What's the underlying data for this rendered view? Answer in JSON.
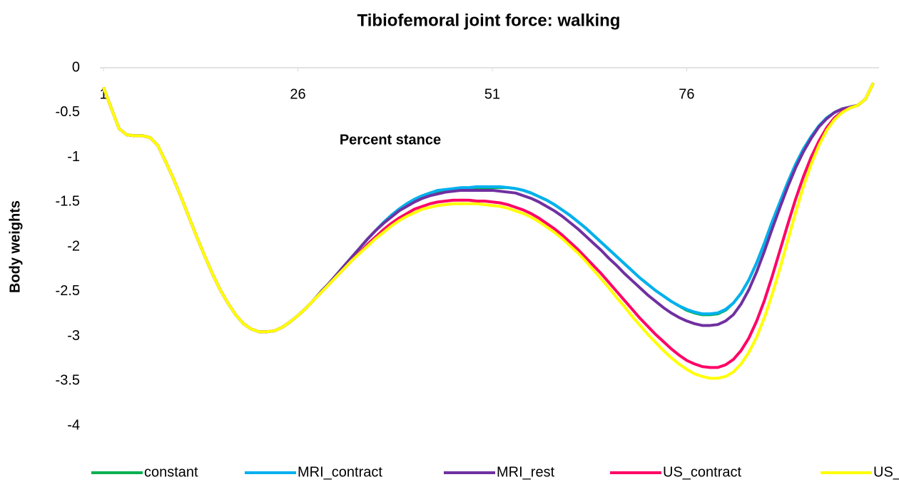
{
  "chart_data": {
    "type": "line",
    "title": "Tibiofemoral joint force: walking",
    "x_label": "Percent stance",
    "y_label": "Body weights",
    "x": [
      1,
      2,
      3,
      4,
      5,
      6,
      7,
      8,
      9,
      10,
      11,
      12,
      13,
      14,
      15,
      16,
      17,
      18,
      19,
      20,
      21,
      22,
      23,
      24,
      25,
      26,
      27,
      28,
      29,
      30,
      31,
      32,
      33,
      34,
      35,
      36,
      37,
      38,
      39,
      40,
      41,
      42,
      43,
      44,
      45,
      46,
      47,
      48,
      49,
      50,
      51,
      52,
      53,
      54,
      55,
      56,
      57,
      58,
      59,
      60,
      61,
      62,
      63,
      64,
      65,
      66,
      67,
      68,
      69,
      70,
      71,
      72,
      73,
      74,
      75,
      76,
      77,
      78,
      79,
      80,
      81,
      82,
      83,
      84,
      85,
      86,
      87,
      88,
      89,
      90,
      91,
      92,
      93,
      94,
      95,
      96,
      97,
      98,
      99,
      100
    ],
    "xlim": [
      1,
      100
    ],
    "xticks": [
      1,
      26,
      51,
      76
    ],
    "ylim": [
      -4,
      0
    ],
    "yticks": [
      0,
      -0.5,
      -1,
      -1.5,
      -2,
      -2.5,
      -3,
      -3.5,
      -4
    ],
    "grid": false,
    "legend": "bottom",
    "series": [
      {
        "name": "constant",
        "color": "#00b050",
        "values": [
          -0.22,
          -0.45,
          -0.68,
          -0.75,
          -0.76,
          -0.76,
          -0.78,
          -0.87,
          -1.05,
          -1.24,
          -1.45,
          -1.67,
          -1.89,
          -2.1,
          -2.3,
          -2.48,
          -2.63,
          -2.76,
          -2.86,
          -2.92,
          -2.95,
          -2.95,
          -2.94,
          -2.9,
          -2.84,
          -2.77,
          -2.69,
          -2.6,
          -2.5,
          -2.41,
          -2.31,
          -2.21,
          -2.11,
          -2.01,
          -1.91,
          -1.82,
          -1.73,
          -1.65,
          -1.58,
          -1.52,
          -1.47,
          -1.43,
          -1.4,
          -1.38,
          -1.37,
          -1.36,
          -1.35,
          -1.35,
          -1.34,
          -1.34,
          -1.34,
          -1.34,
          -1.34,
          -1.35,
          -1.37,
          -1.4,
          -1.44,
          -1.48,
          -1.53,
          -1.59,
          -1.65,
          -1.72,
          -1.79,
          -1.87,
          -1.95,
          -2.03,
          -2.11,
          -2.19,
          -2.27,
          -2.35,
          -2.42,
          -2.49,
          -2.55,
          -2.61,
          -2.66,
          -2.71,
          -2.74,
          -2.76,
          -2.76,
          -2.75,
          -2.71,
          -2.63,
          -2.52,
          -2.37,
          -2.18,
          -1.96,
          -1.72,
          -1.5,
          -1.28,
          -1.08,
          -0.91,
          -0.77,
          -0.65,
          -0.56,
          -0.5,
          -0.46,
          -0.44,
          -0.42,
          -0.35,
          -0.17
        ]
      },
      {
        "name": "MRI_contract",
        "color": "#00b0f0",
        "values": [
          -0.22,
          -0.45,
          -0.68,
          -0.75,
          -0.76,
          -0.76,
          -0.78,
          -0.87,
          -1.05,
          -1.24,
          -1.45,
          -1.67,
          -1.89,
          -2.1,
          -2.3,
          -2.48,
          -2.63,
          -2.76,
          -2.86,
          -2.92,
          -2.95,
          -2.95,
          -2.94,
          -2.9,
          -2.84,
          -2.77,
          -2.69,
          -2.6,
          -2.5,
          -2.41,
          -2.31,
          -2.21,
          -2.11,
          -2.01,
          -1.91,
          -1.82,
          -1.73,
          -1.65,
          -1.58,
          -1.52,
          -1.47,
          -1.43,
          -1.4,
          -1.37,
          -1.36,
          -1.35,
          -1.34,
          -1.34,
          -1.33,
          -1.33,
          -1.33,
          -1.33,
          -1.34,
          -1.35,
          -1.37,
          -1.4,
          -1.44,
          -1.48,
          -1.53,
          -1.59,
          -1.65,
          -1.72,
          -1.79,
          -1.87,
          -1.95,
          -2.03,
          -2.11,
          -2.19,
          -2.27,
          -2.35,
          -2.42,
          -2.49,
          -2.55,
          -2.61,
          -2.66,
          -2.7,
          -2.73,
          -2.75,
          -2.75,
          -2.74,
          -2.7,
          -2.63,
          -2.52,
          -2.37,
          -2.18,
          -1.96,
          -1.72,
          -1.5,
          -1.28,
          -1.08,
          -0.91,
          -0.77,
          -0.65,
          -0.56,
          -0.5,
          -0.46,
          -0.44,
          -0.42,
          -0.35,
          -0.17
        ]
      },
      {
        "name": "MRI_rest",
        "color": "#7030a0",
        "values": [
          -0.22,
          -0.45,
          -0.68,
          -0.75,
          -0.76,
          -0.76,
          -0.78,
          -0.87,
          -1.05,
          -1.24,
          -1.45,
          -1.67,
          -1.89,
          -2.1,
          -2.3,
          -2.48,
          -2.63,
          -2.76,
          -2.86,
          -2.92,
          -2.95,
          -2.95,
          -2.94,
          -2.9,
          -2.84,
          -2.77,
          -2.69,
          -2.6,
          -2.5,
          -2.41,
          -2.31,
          -2.21,
          -2.11,
          -2.01,
          -1.91,
          -1.82,
          -1.74,
          -1.67,
          -1.6,
          -1.55,
          -1.5,
          -1.46,
          -1.43,
          -1.41,
          -1.39,
          -1.38,
          -1.37,
          -1.37,
          -1.37,
          -1.37,
          -1.37,
          -1.38,
          -1.39,
          -1.4,
          -1.43,
          -1.46,
          -1.5,
          -1.55,
          -1.6,
          -1.66,
          -1.73,
          -1.8,
          -1.88,
          -1.96,
          -2.04,
          -2.13,
          -2.21,
          -2.3,
          -2.38,
          -2.46,
          -2.54,
          -2.61,
          -2.68,
          -2.74,
          -2.79,
          -2.83,
          -2.86,
          -2.88,
          -2.88,
          -2.87,
          -2.83,
          -2.76,
          -2.64,
          -2.48,
          -2.28,
          -2.05,
          -1.8,
          -1.56,
          -1.33,
          -1.12,
          -0.94,
          -0.79,
          -0.66,
          -0.57,
          -0.5,
          -0.46,
          -0.44,
          -0.42,
          -0.35,
          -0.17
        ]
      },
      {
        "name": "US_contract",
        "color": "#ff0066",
        "values": [
          -0.22,
          -0.45,
          -0.68,
          -0.75,
          -0.76,
          -0.76,
          -0.78,
          -0.87,
          -1.05,
          -1.24,
          -1.45,
          -1.67,
          -1.89,
          -2.1,
          -2.3,
          -2.48,
          -2.63,
          -2.76,
          -2.86,
          -2.92,
          -2.95,
          -2.95,
          -2.94,
          -2.9,
          -2.84,
          -2.77,
          -2.69,
          -2.6,
          -2.51,
          -2.42,
          -2.33,
          -2.24,
          -2.15,
          -2.06,
          -1.97,
          -1.89,
          -1.81,
          -1.74,
          -1.68,
          -1.63,
          -1.58,
          -1.55,
          -1.52,
          -1.5,
          -1.49,
          -1.48,
          -1.48,
          -1.48,
          -1.49,
          -1.49,
          -1.5,
          -1.51,
          -1.53,
          -1.56,
          -1.59,
          -1.63,
          -1.68,
          -1.74,
          -1.8,
          -1.87,
          -1.95,
          -2.03,
          -2.12,
          -2.21,
          -2.3,
          -2.4,
          -2.5,
          -2.6,
          -2.7,
          -2.8,
          -2.89,
          -2.98,
          -3.06,
          -3.14,
          -3.21,
          -3.27,
          -3.31,
          -3.34,
          -3.35,
          -3.35,
          -3.32,
          -3.26,
          -3.16,
          -3.02,
          -2.83,
          -2.6,
          -2.33,
          -2.04,
          -1.75,
          -1.47,
          -1.22,
          -1.0,
          -0.82,
          -0.67,
          -0.56,
          -0.49,
          -0.45,
          -0.42,
          -0.35,
          -0.17
        ]
      },
      {
        "name": "US_rest",
        "color": "#ffff00",
        "values": [
          -0.22,
          -0.45,
          -0.68,
          -0.75,
          -0.76,
          -0.76,
          -0.78,
          -0.87,
          -1.05,
          -1.24,
          -1.45,
          -1.67,
          -1.89,
          -2.1,
          -2.3,
          -2.48,
          -2.63,
          -2.76,
          -2.86,
          -2.92,
          -2.95,
          -2.95,
          -2.94,
          -2.9,
          -2.84,
          -2.77,
          -2.69,
          -2.6,
          -2.51,
          -2.42,
          -2.33,
          -2.24,
          -2.15,
          -2.07,
          -1.99,
          -1.91,
          -1.84,
          -1.77,
          -1.71,
          -1.66,
          -1.62,
          -1.58,
          -1.56,
          -1.54,
          -1.53,
          -1.52,
          -1.52,
          -1.52,
          -1.52,
          -1.53,
          -1.54,
          -1.55,
          -1.57,
          -1.6,
          -1.63,
          -1.67,
          -1.72,
          -1.78,
          -1.84,
          -1.91,
          -1.99,
          -2.07,
          -2.16,
          -2.26,
          -2.36,
          -2.46,
          -2.57,
          -2.67,
          -2.78,
          -2.88,
          -2.98,
          -3.07,
          -3.16,
          -3.24,
          -3.31,
          -3.37,
          -3.42,
          -3.45,
          -3.47,
          -3.47,
          -3.45,
          -3.4,
          -3.31,
          -3.18,
          -3.01,
          -2.79,
          -2.53,
          -2.24,
          -1.93,
          -1.62,
          -1.33,
          -1.08,
          -0.87,
          -0.7,
          -0.58,
          -0.5,
          -0.45,
          -0.42,
          -0.35,
          -0.17
        ]
      }
    ]
  }
}
